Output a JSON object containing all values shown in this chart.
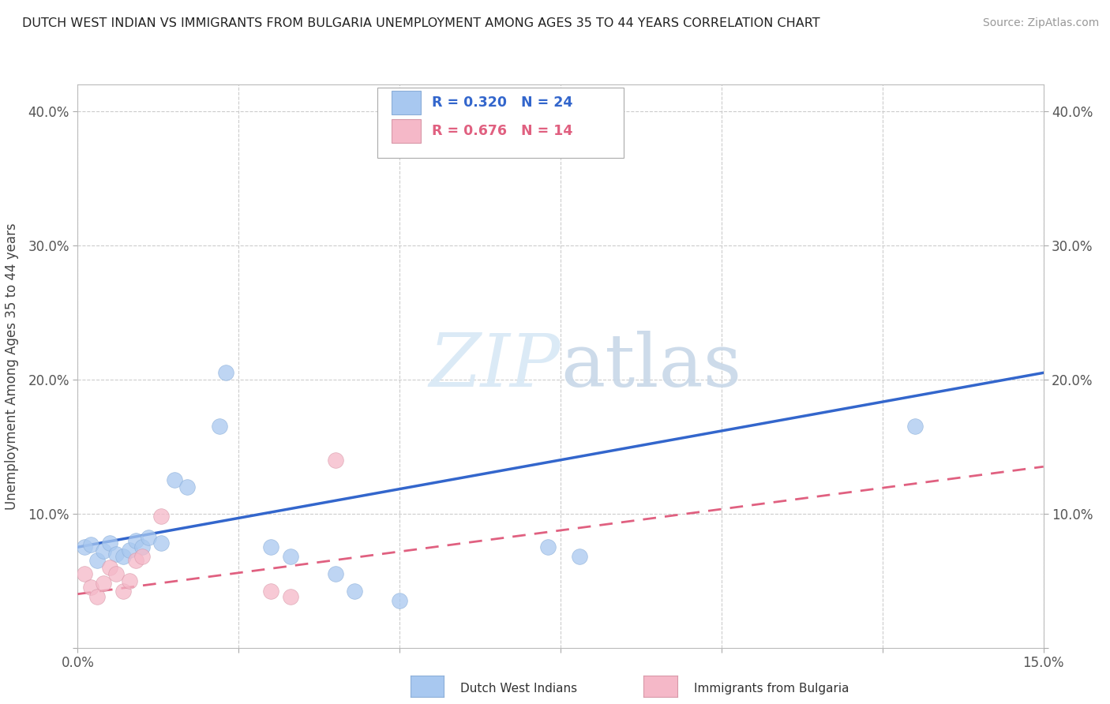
{
  "title": "DUTCH WEST INDIAN VS IMMIGRANTS FROM BULGARIA UNEMPLOYMENT AMONG AGES 35 TO 44 YEARS CORRELATION CHART",
  "source": "Source: ZipAtlas.com",
  "ylabel": "Unemployment Among Ages 35 to 44 years",
  "xlim": [
    0.0,
    0.15
  ],
  "ylim": [
    0.0,
    0.42
  ],
  "xticks": [
    0.0,
    0.025,
    0.05,
    0.075,
    0.1,
    0.125,
    0.15
  ],
  "yticks": [
    0.0,
    0.1,
    0.2,
    0.3,
    0.4
  ],
  "blue_scatter": [
    [
      0.001,
      0.075
    ],
    [
      0.002,
      0.077
    ],
    [
      0.003,
      0.065
    ],
    [
      0.004,
      0.072
    ],
    [
      0.005,
      0.078
    ],
    [
      0.006,
      0.07
    ],
    [
      0.007,
      0.068
    ],
    [
      0.008,
      0.073
    ],
    [
      0.009,
      0.08
    ],
    [
      0.01,
      0.075
    ],
    [
      0.011,
      0.082
    ],
    [
      0.013,
      0.078
    ],
    [
      0.015,
      0.125
    ],
    [
      0.017,
      0.12
    ],
    [
      0.022,
      0.165
    ],
    [
      0.023,
      0.205
    ],
    [
      0.03,
      0.075
    ],
    [
      0.033,
      0.068
    ],
    [
      0.04,
      0.055
    ],
    [
      0.043,
      0.042
    ],
    [
      0.05,
      0.035
    ],
    [
      0.073,
      0.075
    ],
    [
      0.078,
      0.068
    ],
    [
      0.13,
      0.165
    ]
  ],
  "pink_scatter": [
    [
      0.001,
      0.055
    ],
    [
      0.002,
      0.045
    ],
    [
      0.003,
      0.038
    ],
    [
      0.004,
      0.048
    ],
    [
      0.005,
      0.06
    ],
    [
      0.006,
      0.055
    ],
    [
      0.007,
      0.042
    ],
    [
      0.008,
      0.05
    ],
    [
      0.009,
      0.065
    ],
    [
      0.01,
      0.068
    ],
    [
      0.013,
      0.098
    ],
    [
      0.03,
      0.042
    ],
    [
      0.033,
      0.038
    ],
    [
      0.04,
      0.14
    ]
  ],
  "blue_R": 0.32,
  "blue_N": 24,
  "pink_R": 0.676,
  "pink_N": 14,
  "blue_color": "#A8C8F0",
  "pink_color": "#F5B8C8",
  "blue_line_color": "#3366CC",
  "pink_line_color": "#E06080",
  "bg_color": "#FFFFFF",
  "grid_color": "#CCCCCC",
  "blue_trend": [
    0.0,
    0.075,
    0.15,
    0.205
  ],
  "pink_trend": [
    0.0,
    0.04,
    0.15,
    0.135
  ]
}
